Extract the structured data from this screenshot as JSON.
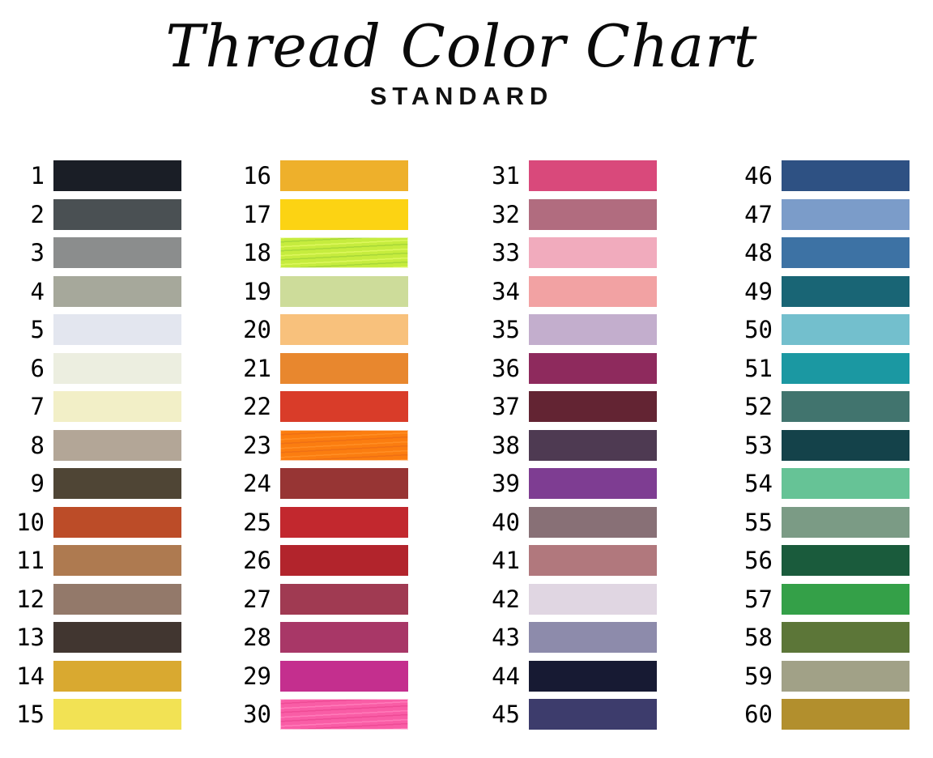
{
  "page": {
    "title": "Thread Color Chart",
    "subtitle": "STANDARD",
    "background_color": "#ffffff",
    "text_color": "#000000"
  },
  "chart_data": {
    "type": "table",
    "title": "Thread Color Chart",
    "subtitle": "STANDARD",
    "description": "Numbered thread color swatch chart, 4 columns of 15 swatches, numbers 1-60",
    "columns": 4,
    "rows_per_column": 15,
    "swatches": [
      {
        "number": 1,
        "color": "#1a1e26",
        "texture": false
      },
      {
        "number": 2,
        "color": "#4a5053",
        "texture": false
      },
      {
        "number": 3,
        "color": "#8b8d8d",
        "texture": false
      },
      {
        "number": 4,
        "color": "#a6a89b",
        "texture": false
      },
      {
        "number": 5,
        "color": "#e3e6ef",
        "texture": false
      },
      {
        "number": 6,
        "color": "#eceee0",
        "texture": false
      },
      {
        "number": 7,
        "color": "#f2efc7",
        "texture": false
      },
      {
        "number": 8,
        "color": "#b3a697",
        "texture": false
      },
      {
        "number": 9,
        "color": "#4f4535",
        "texture": false
      },
      {
        "number": 10,
        "color": "#bc4c28",
        "texture": false
      },
      {
        "number": 11,
        "color": "#ae7a50",
        "texture": false
      },
      {
        "number": 12,
        "color": "#93796a",
        "texture": false
      },
      {
        "number": 13,
        "color": "#413630",
        "texture": false
      },
      {
        "number": 14,
        "color": "#d9a930",
        "texture": false
      },
      {
        "number": 15,
        "color": "#f2e254",
        "texture": false
      },
      {
        "number": 16,
        "color": "#eeb02b",
        "texture": false
      },
      {
        "number": 17,
        "color": "#fcd313",
        "texture": false
      },
      {
        "number": 18,
        "color": "#c6ec3e",
        "texture": true,
        "texture_colors": [
          "#ddf75c",
          "#a8d838"
        ]
      },
      {
        "number": 19,
        "color": "#cddc9a",
        "texture": false
      },
      {
        "number": 20,
        "color": "#f8c17c",
        "texture": false
      },
      {
        "number": 21,
        "color": "#e8872e",
        "texture": false
      },
      {
        "number": 22,
        "color": "#d93c29",
        "texture": false
      },
      {
        "number": 23,
        "color": "#fb7d10",
        "texture": true,
        "texture_colors": [
          "#ff8e24",
          "#ef7014"
        ]
      },
      {
        "number": 24,
        "color": "#973534",
        "texture": false
      },
      {
        "number": 25,
        "color": "#c2282e",
        "texture": false
      },
      {
        "number": 26,
        "color": "#b2242c",
        "texture": false
      },
      {
        "number": 27,
        "color": "#a03a52",
        "texture": false
      },
      {
        "number": 28,
        "color": "#a83767",
        "texture": false
      },
      {
        "number": 29,
        "color": "#c42f8e",
        "texture": false
      },
      {
        "number": 30,
        "color": "#f95da6",
        "texture": true,
        "texture_colors": [
          "#ff7ab9",
          "#ef4b96"
        ]
      },
      {
        "number": 31,
        "color": "#d9497b",
        "texture": false
      },
      {
        "number": 32,
        "color": "#b16c7f",
        "texture": false
      },
      {
        "number": 33,
        "color": "#f1abbd",
        "texture": false
      },
      {
        "number": 34,
        "color": "#f2a2a3",
        "texture": false
      },
      {
        "number": 35,
        "color": "#c3aecd",
        "texture": false
      },
      {
        "number": 36,
        "color": "#8e2a5d",
        "texture": false
      },
      {
        "number": 37,
        "color": "#632433",
        "texture": false
      },
      {
        "number": 38,
        "color": "#4e3a52",
        "texture": false
      },
      {
        "number": 39,
        "color": "#7e3d92",
        "texture": false
      },
      {
        "number": 40,
        "color": "#887076",
        "texture": false
      },
      {
        "number": 41,
        "color": "#b1787d",
        "texture": false
      },
      {
        "number": 42,
        "color": "#e0d6e2",
        "texture": false
      },
      {
        "number": 43,
        "color": "#8d8bab",
        "texture": false
      },
      {
        "number": 44,
        "color": "#171a33",
        "texture": false
      },
      {
        "number": 45,
        "color": "#3d3c6c",
        "texture": false
      },
      {
        "number": 46,
        "color": "#2e5183",
        "texture": false
      },
      {
        "number": 47,
        "color": "#7b9cc9",
        "texture": false
      },
      {
        "number": 48,
        "color": "#3d72a4",
        "texture": false
      },
      {
        "number": 49,
        "color": "#196575",
        "texture": false
      },
      {
        "number": 50,
        "color": "#73bfcd",
        "texture": false
      },
      {
        "number": 51,
        "color": "#1b98a2",
        "texture": false
      },
      {
        "number": 52,
        "color": "#41746e",
        "texture": false
      },
      {
        "number": 53,
        "color": "#14424a",
        "texture": false
      },
      {
        "number": 54,
        "color": "#66c396",
        "texture": false
      },
      {
        "number": 55,
        "color": "#7b9b85",
        "texture": false
      },
      {
        "number": 56,
        "color": "#1a5b3c",
        "texture": false
      },
      {
        "number": 57,
        "color": "#34a048",
        "texture": false
      },
      {
        "number": 58,
        "color": "#5c7638",
        "texture": false
      },
      {
        "number": 59,
        "color": "#a1a187",
        "texture": false
      },
      {
        "number": 60,
        "color": "#b28f2d",
        "texture": false
      }
    ]
  }
}
